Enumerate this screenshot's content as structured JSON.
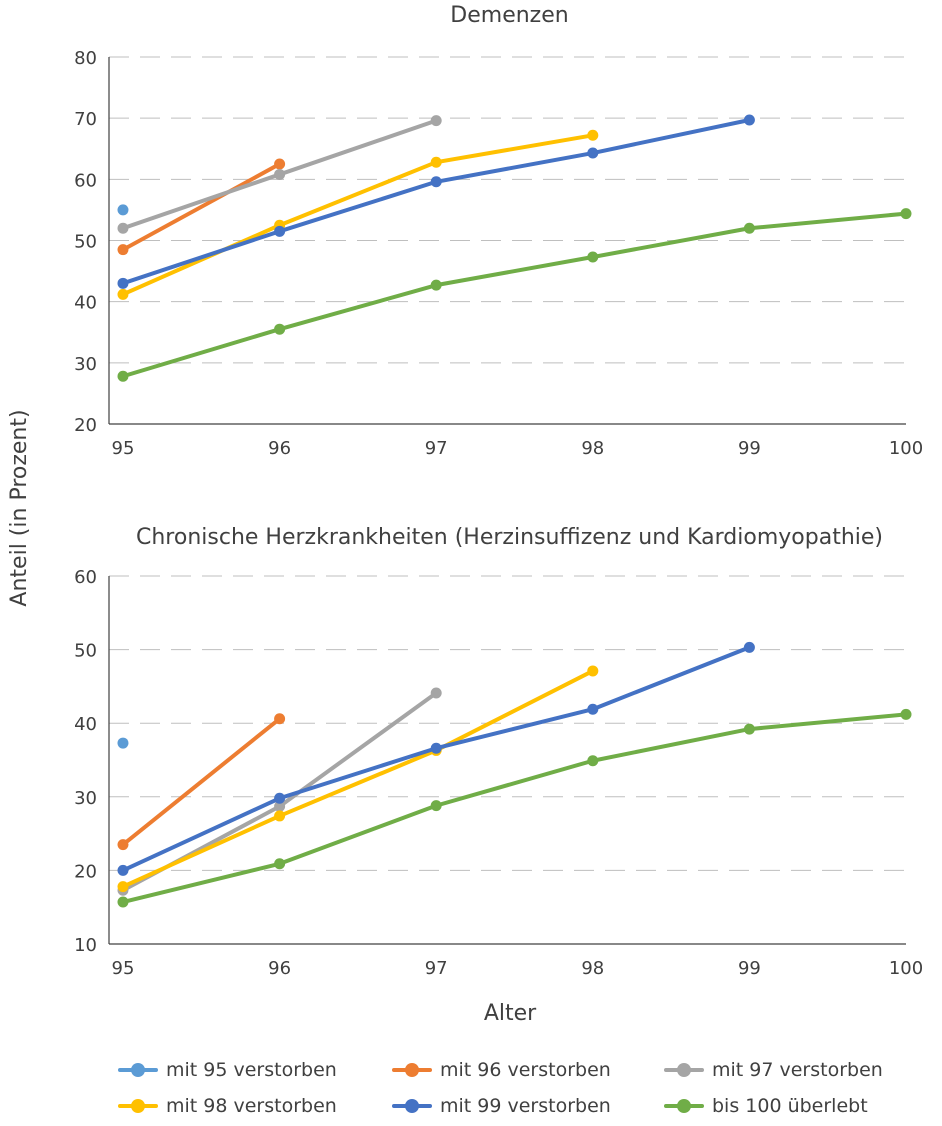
{
  "y_axis_label": "Anteil (in Prozent)",
  "x_axis_label": "Alter",
  "chart_data": [
    {
      "type": "line",
      "title": "Demenzen",
      "xlabel": "Alter",
      "ylabel": "Anteil (in Prozent)",
      "x": [
        95,
        96,
        97,
        98,
        99,
        100
      ],
      "ylim": [
        20,
        80
      ],
      "yticks": [
        20,
        30,
        40,
        50,
        60,
        70,
        80
      ],
      "grid": "horizontal dashed",
      "series": [
        {
          "name": "mit 95 verstorben",
          "color": "#5B9BD5",
          "x": [
            95
          ],
          "values": [
            55
          ]
        },
        {
          "name": "mit 96 verstorben",
          "color": "#ED7D31",
          "x": [
            95,
            96
          ],
          "values": [
            48.5,
            62.5
          ]
        },
        {
          "name": "mit 97 verstorben",
          "color": "#A5A5A5",
          "x": [
            95,
            96,
            97
          ],
          "values": [
            52,
            60.8,
            69.6
          ]
        },
        {
          "name": "mit 98 verstorben",
          "color": "#FFC000",
          "x": [
            95,
            96,
            97,
            98
          ],
          "values": [
            41.2,
            52.5,
            62.8,
            67.2
          ]
        },
        {
          "name": "mit 99 verstorben",
          "color": "#4472C4",
          "x": [
            95,
            96,
            97,
            98,
            99
          ],
          "values": [
            43,
            51.5,
            59.6,
            64.3,
            69.7
          ]
        },
        {
          "name": "bis 100 überlebt",
          "color": "#70AD47",
          "x": [
            95,
            96,
            97,
            98,
            99,
            100
          ],
          "values": [
            27.8,
            35.5,
            42.7,
            47.3,
            52,
            54.4
          ]
        }
      ]
    },
    {
      "type": "line",
      "title": "Chronische Herzkrankheiten (Herzinsuffizenz und Kardiomyopathie)",
      "xlabel": "Alter",
      "ylabel": "Anteil (in Prozent)",
      "x": [
        95,
        96,
        97,
        98,
        99,
        100
      ],
      "ylim": [
        10,
        60
      ],
      "yticks": [
        10,
        20,
        30,
        40,
        50,
        60
      ],
      "grid": "horizontal dashed",
      "series": [
        {
          "name": "mit 95 verstorben",
          "color": "#5B9BD5",
          "x": [
            95
          ],
          "values": [
            37.3
          ]
        },
        {
          "name": "mit 96 verstorben",
          "color": "#ED7D31",
          "x": [
            95,
            96
          ],
          "values": [
            23.5,
            40.6
          ]
        },
        {
          "name": "mit 97 verstorben",
          "color": "#A5A5A5",
          "x": [
            95,
            96,
            97
          ],
          "values": [
            17.3,
            28.7,
            44.1
          ]
        },
        {
          "name": "mit 98 verstorben",
          "color": "#FFC000",
          "x": [
            95,
            96,
            97,
            98
          ],
          "values": [
            17.8,
            27.4,
            36.3,
            47.1
          ]
        },
        {
          "name": "mit 99 verstorben",
          "color": "#4472C4",
          "x": [
            95,
            96,
            97,
            98,
            99
          ],
          "values": [
            20,
            29.8,
            36.6,
            41.9,
            50.3
          ]
        },
        {
          "name": "bis 100 überlebt",
          "color": "#70AD47",
          "x": [
            95,
            96,
            97,
            98,
            99,
            100
          ],
          "values": [
            15.7,
            20.9,
            28.8,
            34.9,
            39.2,
            41.2
          ]
        }
      ]
    }
  ],
  "legend": {
    "placement": "bottom",
    "items": [
      {
        "label": "mit 95 verstorben",
        "color": "#5B9BD5"
      },
      {
        "label": "mit 96 verstorben",
        "color": "#ED7D31"
      },
      {
        "label": "mit 97 verstorben",
        "color": "#A5A5A5"
      },
      {
        "label": "mit 98 verstorben",
        "color": "#FFC000"
      },
      {
        "label": "mit 99 verstorben",
        "color": "#4472C4"
      },
      {
        "label": "bis 100 überlebt",
        "color": "#70AD47"
      }
    ]
  }
}
